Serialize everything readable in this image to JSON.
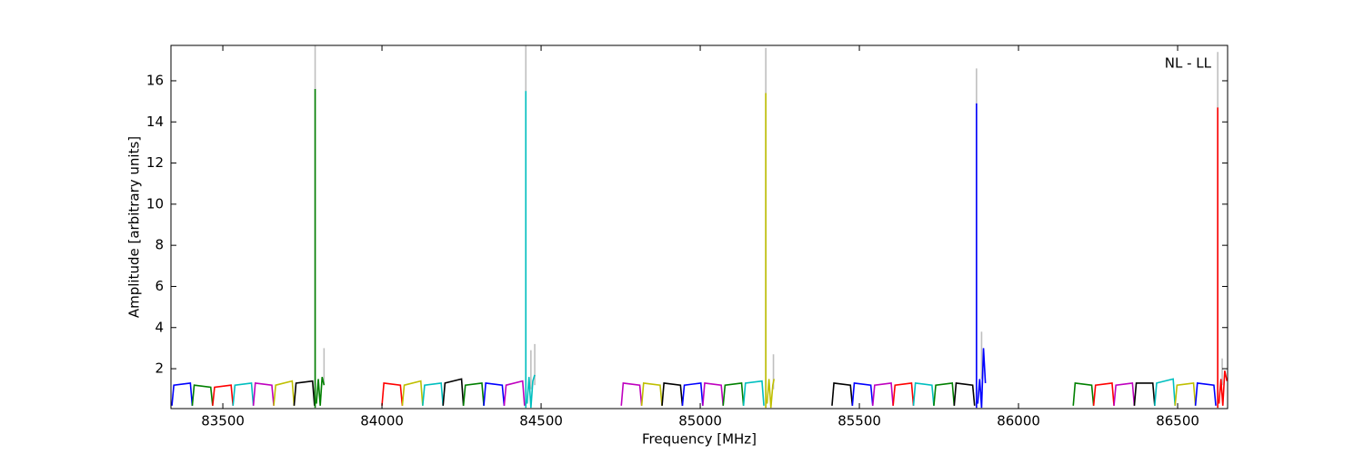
{
  "chart_data": {
    "type": "line",
    "xlabel": "Frequency [MHz]",
    "ylabel": "Amplitude [arbitrary units]",
    "annotation": "NL - LL",
    "xlim": [
      83337,
      86657
    ],
    "ylim": [
      0.06,
      17.72
    ],
    "xticks": [
      83500,
      84000,
      84500,
      85000,
      85500,
      86000,
      86500
    ],
    "yticks": [
      2,
      4,
      6,
      8,
      10,
      12,
      14,
      16
    ],
    "series": [
      {
        "color": "#0000ff",
        "x": [
          83340,
          83346,
          83398,
          83404
        ],
        "values": [
          0.2,
          1.2,
          1.3,
          0.2
        ]
      },
      {
        "color": "#008000",
        "x": [
          83404,
          83410,
          83462,
          83468
        ],
        "values": [
          0.2,
          1.2,
          1.1,
          0.2
        ]
      },
      {
        "color": "#ff0000",
        "x": [
          83468,
          83474,
          83526,
          83532
        ],
        "values": [
          0.2,
          1.1,
          1.2,
          0.2
        ]
      },
      {
        "color": "#00bfbf",
        "x": [
          83532,
          83538,
          83590,
          83596
        ],
        "values": [
          0.2,
          1.2,
          1.3,
          0.2
        ]
      },
      {
        "color": "#bf00bf",
        "x": [
          83596,
          83602,
          83654,
          83660
        ],
        "values": [
          0.2,
          1.3,
          1.2,
          0.2
        ]
      },
      {
        "color": "#bfbf00",
        "x": [
          83660,
          83666,
          83718,
          83724
        ],
        "values": [
          0.2,
          1.2,
          1.4,
          0.2
        ]
      },
      {
        "color": "#000000",
        "x": [
          83724,
          83730,
          83782,
          83788
        ],
        "values": [
          0.2,
          1.3,
          1.4,
          0.2
        ]
      },
      {
        "color": "#bfbfbf",
        "x": [
          83790,
          83790
        ],
        "values": [
          0.1,
          17.7
        ]
      },
      {
        "color": "#bfbfbf",
        "x": [
          83818,
          83818
        ],
        "values": [
          1.2,
          3.0
        ]
      },
      {
        "color": "#008000",
        "x": [
          83790,
          83790
        ],
        "values": [
          0.1,
          15.6
        ]
      },
      {
        "color": "#008000",
        "x": [
          83794,
          83800,
          83806,
          83812,
          83818
        ],
        "values": [
          0.3,
          1.5,
          0.2,
          1.6,
          1.2
        ]
      },
      {
        "color": "#ff0000",
        "x": [
          84000,
          84006,
          84058,
          84064
        ],
        "values": [
          0.2,
          1.3,
          1.2,
          0.2
        ]
      },
      {
        "color": "#bfbf00",
        "x": [
          84064,
          84070,
          84122,
          84128
        ],
        "values": [
          0.2,
          1.2,
          1.4,
          0.2
        ]
      },
      {
        "color": "#00bfbf",
        "x": [
          84128,
          84134,
          84186,
          84192
        ],
        "values": [
          0.2,
          1.2,
          1.3,
          0.2
        ]
      },
      {
        "color": "#000000",
        "x": [
          84192,
          84198,
          84250,
          84256
        ],
        "values": [
          0.2,
          1.3,
          1.5,
          0.2
        ]
      },
      {
        "color": "#008000",
        "x": [
          84256,
          84262,
          84314,
          84320
        ],
        "values": [
          0.2,
          1.2,
          1.3,
          0.2
        ]
      },
      {
        "color": "#0000ff",
        "x": [
          84320,
          84326,
          84378,
          84384
        ],
        "values": [
          0.2,
          1.3,
          1.2,
          0.2
        ]
      },
      {
        "color": "#bf00bf",
        "x": [
          84384,
          84390,
          84442,
          84448
        ],
        "values": [
          0.2,
          1.2,
          1.4,
          0.2
        ]
      },
      {
        "color": "#bfbfbf",
        "x": [
          84452,
          84452
        ],
        "values": [
          0.1,
          17.7
        ]
      },
      {
        "color": "#bfbfbf",
        "x": [
          84468,
          84468
        ],
        "values": [
          1.0,
          2.9
        ]
      },
      {
        "color": "#bfbfbf",
        "x": [
          84480,
          84480
        ],
        "values": [
          1.2,
          3.2
        ]
      },
      {
        "color": "#00bfbf",
        "x": [
          84452,
          84452
        ],
        "values": [
          0.1,
          15.5
        ]
      },
      {
        "color": "#00bfbf",
        "x": [
          84456,
          84462,
          84468,
          84474,
          84480
        ],
        "values": [
          0.3,
          1.6,
          0.1,
          1.4,
          1.7
        ]
      },
      {
        "color": "#bf00bf",
        "x": [
          84752,
          84758,
          84810,
          84816
        ],
        "values": [
          0.2,
          1.3,
          1.2,
          0.2
        ]
      },
      {
        "color": "#bfbf00",
        "x": [
          84816,
          84822,
          84874,
          84880
        ],
        "values": [
          0.2,
          1.3,
          1.2,
          0.2
        ]
      },
      {
        "color": "#000000",
        "x": [
          84880,
          84886,
          84938,
          84944
        ],
        "values": [
          0.2,
          1.3,
          1.2,
          0.2
        ]
      },
      {
        "color": "#0000ff",
        "x": [
          84944,
          84950,
          85002,
          85008
        ],
        "values": [
          0.2,
          1.2,
          1.3,
          0.2
        ]
      },
      {
        "color": "#bf00bf",
        "x": [
          85008,
          85014,
          85066,
          85072
        ],
        "values": [
          0.2,
          1.3,
          1.2,
          0.2
        ]
      },
      {
        "color": "#008000",
        "x": [
          85072,
          85078,
          85130,
          85136
        ],
        "values": [
          0.2,
          1.2,
          1.3,
          0.2
        ]
      },
      {
        "color": "#00bfbf",
        "x": [
          85136,
          85142,
          85194,
          85200
        ],
        "values": [
          0.2,
          1.3,
          1.4,
          0.2
        ]
      },
      {
        "color": "#bfbfbf",
        "x": [
          85206,
          85206
        ],
        "values": [
          0.1,
          17.6
        ]
      },
      {
        "color": "#bfbfbf",
        "x": [
          85230,
          85230
        ],
        "values": [
          1.0,
          2.7
        ]
      },
      {
        "color": "#bfbf00",
        "x": [
          85206,
          85206
        ],
        "values": [
          0.1,
          15.4
        ]
      },
      {
        "color": "#bfbf00",
        "x": [
          85210,
          85216,
          85222,
          85228,
          85232
        ],
        "values": [
          0.3,
          1.5,
          0.1,
          1.2,
          1.5
        ]
      },
      {
        "color": "#000000",
        "x": [
          85414,
          85420,
          85472,
          85478
        ],
        "values": [
          0.2,
          1.3,
          1.2,
          0.2
        ]
      },
      {
        "color": "#0000ff",
        "x": [
          85478,
          85484,
          85536,
          85542
        ],
        "values": [
          0.2,
          1.3,
          1.2,
          0.2
        ]
      },
      {
        "color": "#bf00bf",
        "x": [
          85542,
          85548,
          85600,
          85606
        ],
        "values": [
          0.2,
          1.2,
          1.3,
          0.2
        ]
      },
      {
        "color": "#ff0000",
        "x": [
          85606,
          85612,
          85664,
          85670
        ],
        "values": [
          0.2,
          1.2,
          1.3,
          0.2
        ]
      },
      {
        "color": "#00bfbf",
        "x": [
          85670,
          85676,
          85728,
          85734
        ],
        "values": [
          0.2,
          1.3,
          1.2,
          0.2
        ]
      },
      {
        "color": "#008000",
        "x": [
          85734,
          85740,
          85792,
          85798
        ],
        "values": [
          0.2,
          1.2,
          1.3,
          0.2
        ]
      },
      {
        "color": "#000000",
        "x": [
          85798,
          85804,
          85856,
          85862
        ],
        "values": [
          0.2,
          1.3,
          1.2,
          0.2
        ]
      },
      {
        "color": "#bfbfbf",
        "x": [
          85868,
          85868
        ],
        "values": [
          0.1,
          16.6
        ]
      },
      {
        "color": "#bfbfbf",
        "x": [
          85884,
          85884
        ],
        "values": [
          1.5,
          3.8
        ]
      },
      {
        "color": "#0000ff",
        "x": [
          85868,
          85868
        ],
        "values": [
          0.1,
          14.9
        ]
      },
      {
        "color": "#0000ff",
        "x": [
          85872,
          85878,
          85884,
          85890,
          85896
        ],
        "values": [
          0.3,
          1.5,
          0.1,
          3.0,
          1.3
        ]
      },
      {
        "color": "#008000",
        "x": [
          86172,
          86178,
          86230,
          86236
        ],
        "values": [
          0.2,
          1.3,
          1.2,
          0.2
        ]
      },
      {
        "color": "#ff0000",
        "x": [
          86236,
          86242,
          86294,
          86300
        ],
        "values": [
          0.2,
          1.2,
          1.3,
          0.2
        ]
      },
      {
        "color": "#bf00bf",
        "x": [
          86300,
          86306,
          86358,
          86364
        ],
        "values": [
          0.2,
          1.2,
          1.3,
          0.2
        ]
      },
      {
        "color": "#000000",
        "x": [
          86364,
          86370,
          86422,
          86428
        ],
        "values": [
          0.2,
          1.3,
          1.3,
          0.2
        ]
      },
      {
        "color": "#00bfbf",
        "x": [
          86428,
          86434,
          86486,
          86492
        ],
        "values": [
          0.2,
          1.3,
          1.5,
          0.2
        ]
      },
      {
        "color": "#bfbf00",
        "x": [
          86492,
          86498,
          86550,
          86556
        ],
        "values": [
          0.2,
          1.2,
          1.3,
          0.2
        ]
      },
      {
        "color": "#0000ff",
        "x": [
          86556,
          86562,
          86614,
          86620
        ],
        "values": [
          0.2,
          1.3,
          1.2,
          0.2
        ]
      },
      {
        "color": "#bfbfbf",
        "x": [
          86626,
          86626
        ],
        "values": [
          0.1,
          17.4
        ]
      },
      {
        "color": "#bfbfbf",
        "x": [
          86640,
          86640
        ],
        "values": [
          1.2,
          2.5
        ]
      },
      {
        "color": "#ff0000",
        "x": [
          86626,
          86626
        ],
        "values": [
          0.1,
          14.7
        ]
      },
      {
        "color": "#ff0000",
        "x": [
          86630,
          86636,
          86642,
          86648,
          86655
        ],
        "values": [
          0.3,
          1.5,
          0.2,
          1.9,
          1.4
        ]
      }
    ]
  }
}
